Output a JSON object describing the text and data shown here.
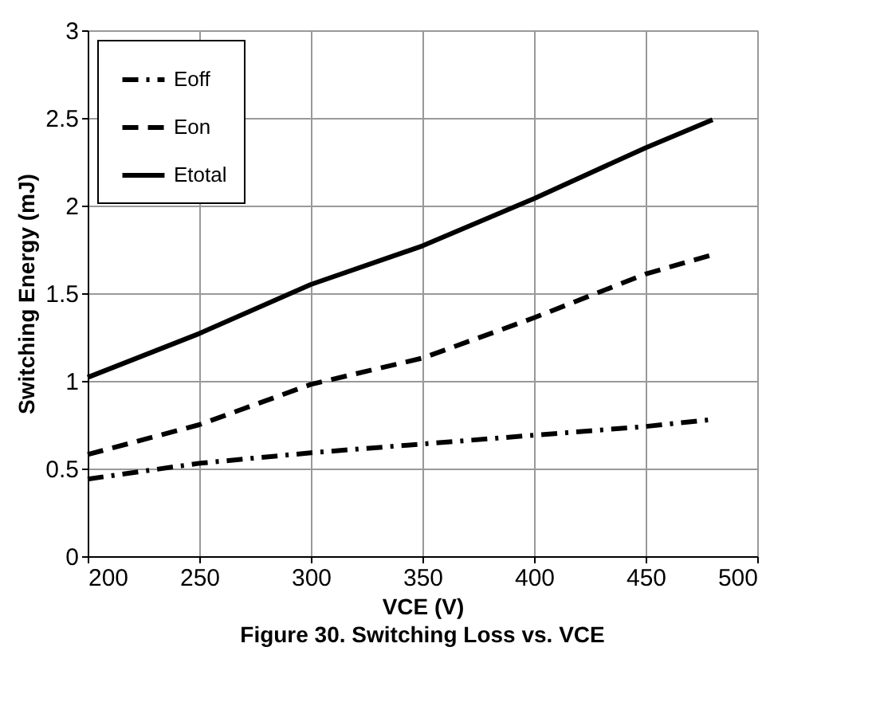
{
  "chart_data": {
    "type": "line",
    "xlabel": "VCE (V)",
    "ylabel": "Switching Energy (mJ)",
    "annotations": [
      "Figure 30. Switching Loss vs. VCE"
    ],
    "x": [
      200,
      250,
      300,
      350,
      400,
      450,
      480
    ],
    "series": [
      {
        "name": "Eoff",
        "color": "#000000",
        "line_style": "dashdot",
        "values": [
          0.44,
          0.53,
          0.59,
          0.64,
          0.69,
          0.74,
          0.78
        ]
      },
      {
        "name": "Eon",
        "color": "#000000",
        "line_style": "dashed",
        "values": [
          0.58,
          0.75,
          0.98,
          1.13,
          1.36,
          1.61,
          1.72
        ]
      },
      {
        "name": "Etotal",
        "color": "#000000",
        "line_style": "solid",
        "values": [
          1.02,
          1.27,
          1.55,
          1.77,
          2.04,
          2.33,
          2.49
        ]
      }
    ],
    "xlim": [
      200,
      500
    ],
    "xticks": [
      200,
      250,
      300,
      350,
      400,
      450,
      500
    ],
    "ylim": [
      0,
      3
    ],
    "yticks": [
      0,
      0.5,
      1,
      1.5,
      2,
      2.5,
      3
    ],
    "grid": true,
    "legend": "top left",
    "marker": "none"
  }
}
